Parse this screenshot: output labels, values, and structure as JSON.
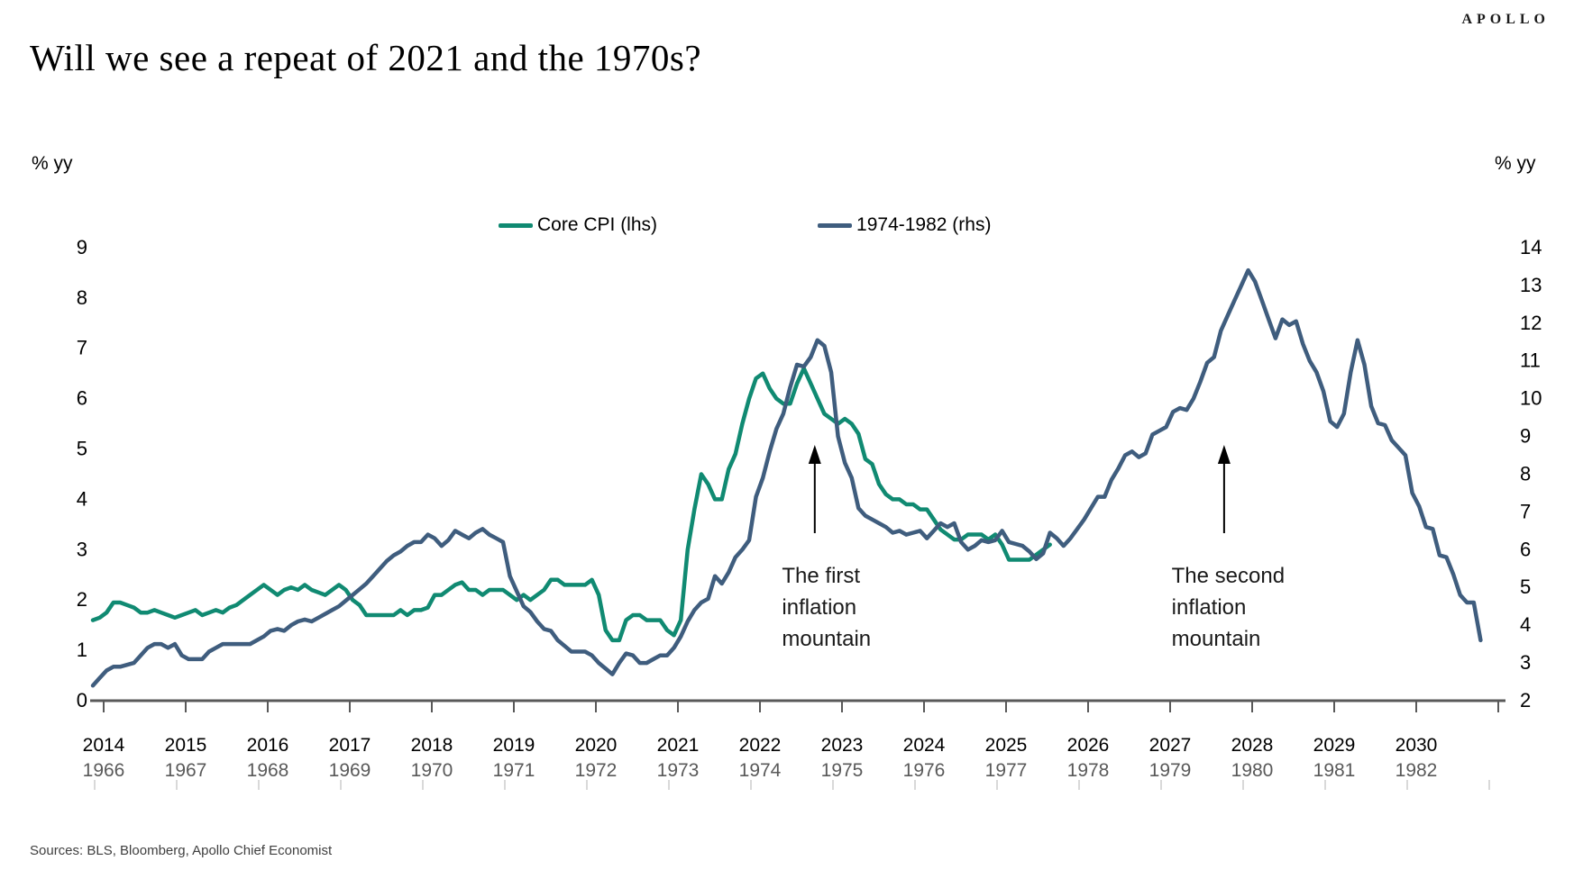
{
  "brand": "APOLLO",
  "title": "Will we see a repeat of 2021 and the 1970s?",
  "source": "Sources: BLS, Bloomberg, Apollo Chief Economist",
  "axis_unit_left": "% yy",
  "axis_unit_right": "% yy",
  "annotations": [
    {
      "lines": [
        "The first",
        "inflation",
        "mountain"
      ],
      "arrow_year": 8.8,
      "text_year": 8.4
    },
    {
      "lines": [
        "The second",
        "inflation",
        "mountain"
      ],
      "arrow_year": 13.79,
      "text_year": 13.15
    }
  ],
  "chart_data": {
    "type": "line",
    "title": "Will we see a repeat of 2021 and the 1970s?",
    "x_axis": {
      "top_labels": [
        "2014",
        "2015",
        "2016",
        "2017",
        "2018",
        "2019",
        "2020",
        "2021",
        "2022",
        "2023",
        "2024",
        "2025",
        "2026",
        "2027",
        "2028",
        "2029",
        "2030"
      ],
      "bottom_labels": [
        "1966",
        "1967",
        "1968",
        "1969",
        "1970",
        "1971",
        "1972",
        "1973",
        "1974",
        "1975",
        "1976",
        "1977",
        "1978",
        "1979",
        "1980",
        "1981",
        "1982"
      ]
    },
    "y_left": {
      "label": "% yy",
      "min": 0,
      "max": 9,
      "ticks": [
        0,
        1,
        2,
        3,
        4,
        5,
        6,
        7,
        8,
        9
      ]
    },
    "y_right": {
      "label": "% yy",
      "min": 2,
      "max": 14,
      "ticks": [
        2,
        3,
        4,
        5,
        6,
        7,
        8,
        9,
        10,
        11,
        12,
        13,
        14
      ]
    },
    "legend_position": "top-center",
    "grid": false,
    "series": [
      {
        "name": "Core CPI (lhs)",
        "axis": "left",
        "color": "#108A72",
        "start_label": "2014",
        "frequency": "monthly",
        "values": [
          1.6,
          1.65,
          1.75,
          1.95,
          1.95,
          1.9,
          1.85,
          1.75,
          1.75,
          1.8,
          1.75,
          1.7,
          1.65,
          1.7,
          1.75,
          1.8,
          1.7,
          1.75,
          1.8,
          1.75,
          1.85,
          1.9,
          2.0,
          2.1,
          2.2,
          2.3,
          2.2,
          2.1,
          2.2,
          2.25,
          2.2,
          2.3,
          2.2,
          2.15,
          2.1,
          2.2,
          2.3,
          2.2,
          2.0,
          1.9,
          1.7,
          1.7,
          1.7,
          1.7,
          1.7,
          1.8,
          1.7,
          1.8,
          1.8,
          1.85,
          2.1,
          2.1,
          2.2,
          2.3,
          2.35,
          2.2,
          2.2,
          2.1,
          2.2,
          2.2,
          2.2,
          2.1,
          2.0,
          2.1,
          2.0,
          2.1,
          2.2,
          2.4,
          2.4,
          2.3,
          2.3,
          2.3,
          2.3,
          2.4,
          2.1,
          1.4,
          1.2,
          1.2,
          1.6,
          1.7,
          1.7,
          1.6,
          1.6,
          1.6,
          1.4,
          1.3,
          1.6,
          3.0,
          3.8,
          4.5,
          4.3,
          4.0,
          4.0,
          4.6,
          4.9,
          5.5,
          6.0,
          6.4,
          6.5,
          6.2,
          6.0,
          5.9,
          5.9,
          6.3,
          6.6,
          6.3,
          6.0,
          5.7,
          5.6,
          5.5,
          5.6,
          5.5,
          5.3,
          4.8,
          4.7,
          4.3,
          4.1,
          4.0,
          4.0,
          3.9,
          3.9,
          3.8,
          3.8,
          3.6,
          3.4,
          3.3,
          3.2,
          3.2,
          3.3,
          3.3,
          3.3,
          3.2,
          3.3,
          3.1,
          2.8,
          2.8,
          2.8,
          2.8,
          2.9,
          3.0,
          3.1
        ]
      },
      {
        "name": "1974-1982 (rhs)",
        "axis": "right",
        "color": "#3F5D7E",
        "start_label": "1966",
        "frequency": "monthly",
        "values": [
          2.4,
          2.6,
          2.8,
          2.9,
          2.9,
          2.95,
          3.0,
          3.2,
          3.4,
          3.5,
          3.5,
          3.4,
          3.5,
          3.2,
          3.1,
          3.1,
          3.1,
          3.3,
          3.4,
          3.5,
          3.5,
          3.5,
          3.5,
          3.5,
          3.6,
          3.7,
          3.85,
          3.9,
          3.85,
          4.0,
          4.1,
          4.15,
          4.1,
          4.2,
          4.3,
          4.4,
          4.5,
          4.65,
          4.8,
          4.95,
          5.1,
          5.3,
          5.5,
          5.7,
          5.85,
          5.95,
          6.1,
          6.2,
          6.2,
          6.4,
          6.3,
          6.1,
          6.25,
          6.5,
          6.4,
          6.3,
          6.45,
          6.55,
          6.4,
          6.3,
          6.2,
          5.3,
          4.9,
          4.5,
          4.35,
          4.1,
          3.9,
          3.85,
          3.6,
          3.45,
          3.3,
          3.3,
          3.3,
          3.2,
          3.0,
          2.85,
          2.7,
          3.0,
          3.25,
          3.2,
          3.0,
          3.0,
          3.1,
          3.2,
          3.2,
          3.4,
          3.7,
          4.1,
          4.4,
          4.6,
          4.7,
          5.3,
          5.1,
          5.4,
          5.8,
          6.0,
          6.25,
          7.4,
          7.9,
          8.6,
          9.2,
          9.6,
          10.3,
          10.9,
          10.85,
          11.1,
          11.55,
          11.4,
          10.7,
          9.0,
          8.3,
          7.9,
          7.1,
          6.9,
          6.8,
          6.7,
          6.6,
          6.45,
          6.5,
          6.4,
          6.45,
          6.5,
          6.3,
          6.5,
          6.7,
          6.6,
          6.7,
          6.2,
          6.0,
          6.1,
          6.25,
          6.2,
          6.25,
          6.5,
          6.2,
          6.15,
          6.1,
          5.95,
          5.75,
          5.9,
          6.45,
          6.3,
          6.1,
          6.3,
          6.55,
          6.8,
          7.1,
          7.4,
          7.4,
          7.85,
          8.15,
          8.5,
          8.6,
          8.45,
          8.55,
          9.05,
          9.15,
          9.25,
          9.65,
          9.75,
          9.7,
          10.0,
          10.45,
          10.95,
          11.1,
          11.8,
          12.2,
          12.6,
          13.0,
          13.4,
          13.1,
          12.6,
          12.1,
          11.6,
          12.1,
          11.95,
          12.05,
          11.45,
          11.0,
          10.7,
          10.2,
          9.4,
          9.25,
          9.6,
          10.7,
          11.55,
          10.9,
          9.8,
          9.35,
          9.3,
          8.9,
          8.7,
          8.5,
          7.5,
          7.15,
          6.6,
          6.55,
          5.85,
          5.8,
          5.35,
          4.8,
          4.6,
          4.6,
          3.6
        ]
      }
    ]
  }
}
